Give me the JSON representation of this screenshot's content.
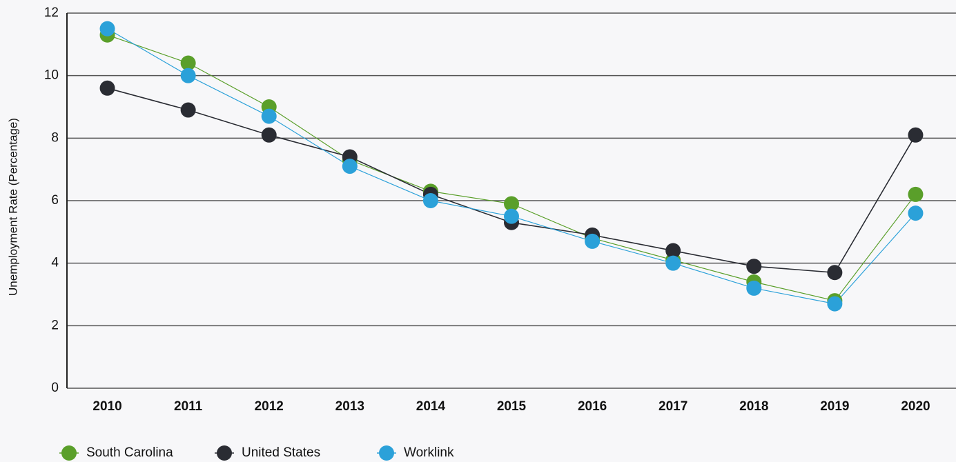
{
  "chart_data": {
    "type": "line",
    "y_label": "Unemployment Rate (Percentage)",
    "categories": [
      "2010",
      "2011",
      "2012",
      "2013",
      "2014",
      "2015",
      "2016",
      "2017",
      "2018",
      "2019",
      "2020"
    ],
    "series": [
      {
        "name": "South Carolina",
        "color": "#5a9f2a",
        "values": [
          11.3,
          10.4,
          9.0,
          7.3,
          6.3,
          5.9,
          4.8,
          4.1,
          3.4,
          2.8,
          6.2
        ]
      },
      {
        "name": "United States",
        "color": "#2a2c33",
        "values": [
          9.6,
          8.9,
          8.1,
          7.4,
          6.2,
          5.3,
          4.9,
          4.4,
          3.9,
          3.7,
          8.1
        ]
      },
      {
        "name": "Worklink",
        "color": "#2ba1d9",
        "values": [
          11.5,
          10.0,
          8.7,
          7.1,
          6.0,
          5.5,
          4.7,
          4.0,
          3.2,
          2.7,
          5.6
        ]
      }
    ],
    "ylim": [
      0,
      12
    ],
    "yticks": [
      0,
      2,
      4,
      6,
      8,
      10,
      12
    ],
    "grid": true,
    "legend": "bottom"
  }
}
